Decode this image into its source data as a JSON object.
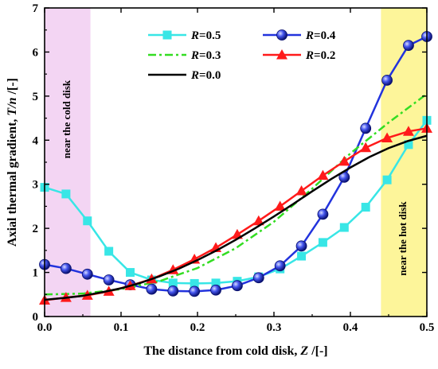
{
  "chart_data": {
    "type": "line",
    "xlabel": {
      "prefix": "The distance from cold disk, ",
      "var": "Z",
      "unit": " /[-]"
    },
    "ylabel": {
      "prefix": "Axial thermal gradient, ",
      "var": "T/n",
      "unit": " /[-]"
    },
    "xlim": [
      0.0,
      0.5
    ],
    "ylim": [
      0,
      7
    ],
    "xticks": [
      "0.0",
      "0.1",
      "0.2",
      "0.3",
      "0.4",
      "0.5"
    ],
    "yticks": [
      "0",
      "1",
      "2",
      "3",
      "4",
      "5",
      "6",
      "7"
    ],
    "grid": false,
    "legend_position": "top-center",
    "regions": [
      {
        "label": "near the cold disk",
        "x_range": [
          0.0,
          0.06
        ],
        "color": "#f3d5f3"
      },
      {
        "label": "near the hot disk",
        "x_range": [
          0.44,
          0.5
        ],
        "color": "#fdf59a"
      }
    ],
    "series": [
      {
        "name": "R=0.5",
        "color": "#38e6e6",
        "marker": "square",
        "line": "solid",
        "x": [
          0.0,
          0.028,
          0.056,
          0.084,
          0.112,
          0.14,
          0.168,
          0.196,
          0.224,
          0.252,
          0.28,
          0.308,
          0.336,
          0.364,
          0.392,
          0.42,
          0.448,
          0.476,
          0.5
        ],
        "y": [
          2.93,
          2.78,
          2.17,
          1.48,
          1.0,
          0.83,
          0.76,
          0.75,
          0.76,
          0.8,
          0.9,
          1.08,
          1.37,
          1.68,
          2.02,
          2.48,
          3.1,
          3.9,
          4.45
        ]
      },
      {
        "name": "R=0.4",
        "color": "#2233dd",
        "marker": "circle",
        "line": "solid",
        "x": [
          0.0,
          0.028,
          0.056,
          0.084,
          0.112,
          0.14,
          0.168,
          0.196,
          0.224,
          0.252,
          0.28,
          0.308,
          0.336,
          0.364,
          0.392,
          0.42,
          0.448,
          0.476,
          0.5
        ],
        "y": [
          1.18,
          1.09,
          0.96,
          0.83,
          0.72,
          0.62,
          0.58,
          0.57,
          0.6,
          0.7,
          0.88,
          1.15,
          1.6,
          2.32,
          3.16,
          4.27,
          5.36,
          6.15,
          6.35
        ]
      },
      {
        "name": "R=0.3",
        "color": "#33dd22",
        "marker": "none",
        "line": "dashdot",
        "x": [
          0.0,
          0.05,
          0.1,
          0.15,
          0.2,
          0.25,
          0.3,
          0.35,
          0.4,
          0.45,
          0.5
        ],
        "y": [
          0.5,
          0.52,
          0.62,
          0.8,
          1.1,
          1.55,
          2.15,
          2.9,
          3.7,
          4.4,
          5.05
        ]
      },
      {
        "name": "R=0.2",
        "color": "#ff1a1a",
        "marker": "triangle",
        "line": "solid",
        "x": [
          0.0,
          0.028,
          0.056,
          0.084,
          0.112,
          0.14,
          0.168,
          0.196,
          0.224,
          0.252,
          0.28,
          0.308,
          0.336,
          0.364,
          0.392,
          0.42,
          0.448,
          0.476,
          0.5
        ],
        "y": [
          0.37,
          0.43,
          0.48,
          0.57,
          0.7,
          0.85,
          1.06,
          1.3,
          1.56,
          1.86,
          2.17,
          2.5,
          2.85,
          3.2,
          3.52,
          3.83,
          4.05,
          4.2,
          4.27
        ]
      },
      {
        "name": "R=0.0",
        "color": "#000000",
        "marker": "none",
        "line": "solid",
        "x": [
          0.0,
          0.025,
          0.05,
          0.075,
          0.1,
          0.125,
          0.15,
          0.175,
          0.2,
          0.225,
          0.25,
          0.275,
          0.3,
          0.325,
          0.35,
          0.375,
          0.4,
          0.425,
          0.45,
          0.475,
          0.5
        ],
        "y": [
          0.38,
          0.42,
          0.47,
          0.55,
          0.64,
          0.76,
          0.91,
          1.08,
          1.28,
          1.5,
          1.74,
          2.0,
          2.27,
          2.55,
          2.84,
          3.12,
          3.38,
          3.62,
          3.82,
          3.98,
          4.1
        ]
      }
    ]
  }
}
